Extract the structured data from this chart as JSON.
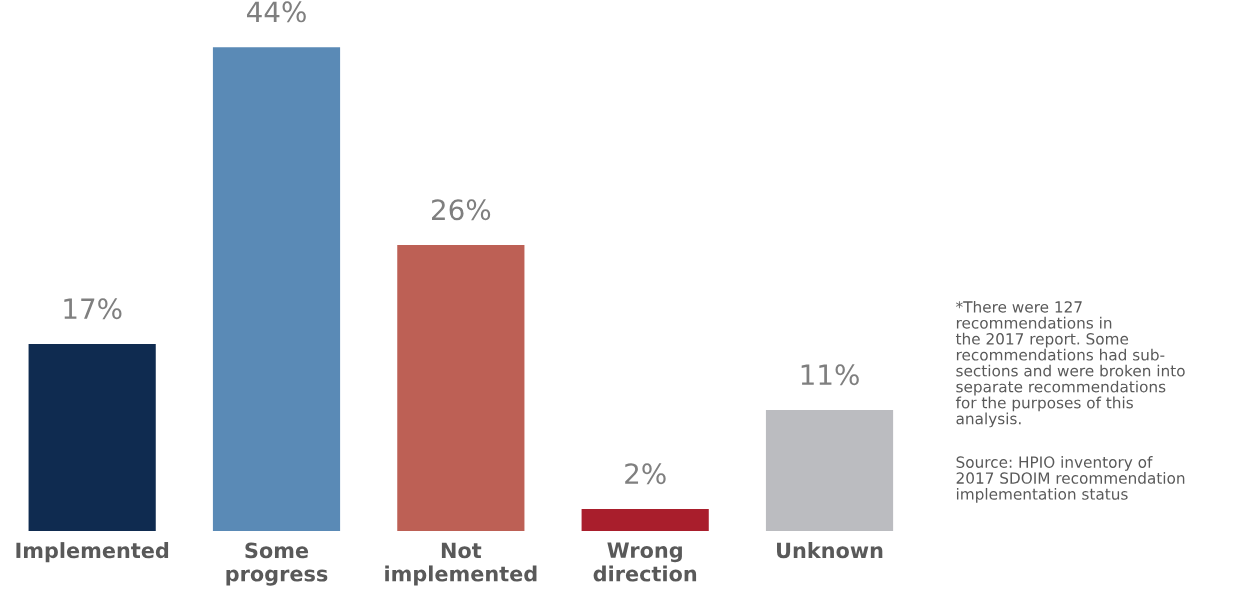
{
  "chart_data": {
    "type": "bar",
    "categories": [
      "Implemented",
      "Some\nprogress",
      "Not\nimplemented",
      "Wrong\ndirection",
      "Unknown"
    ],
    "values": [
      17,
      44,
      26,
      2,
      11
    ],
    "colors": [
      "#0f2b50",
      "#5a8ab6",
      "#bd6055",
      "#a91e2c",
      "#bbbcc0"
    ],
    "value_labels": [
      "17%",
      "44%",
      "26%",
      "2%",
      "11%"
    ],
    "grid": false,
    "annotations": [
      "*There were 127\nrecommendations in\nthe 2017 report. Some\nrecommendations had sub-\nsections and were broken into\nseparate recommendations\nfor the purposes of this\nanalysis.",
      "Source: HPIO inventory of\n2017 SDOIM recommendation\nimplementation status"
    ]
  }
}
